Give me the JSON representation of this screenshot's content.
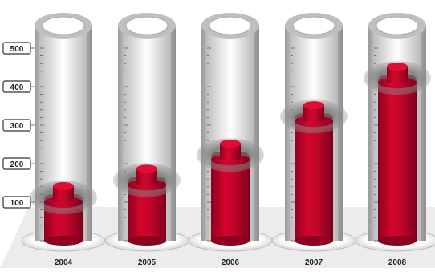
{
  "chart_data": {
    "type": "bar",
    "categories": [
      "2004",
      "2005",
      "2006",
      "2007",
      "2008"
    ],
    "values": [
      150,
      195,
      260,
      360,
      460
    ],
    "ylim": [
      0,
      500
    ],
    "ticks": [
      100,
      200,
      300,
      400,
      500
    ],
    "colors": {
      "bar": "#c0072a",
      "bar_top": "#e00d33",
      "floor": "#ececec",
      "tube": "#cfcfcf",
      "axis_box": "#333333"
    }
  }
}
